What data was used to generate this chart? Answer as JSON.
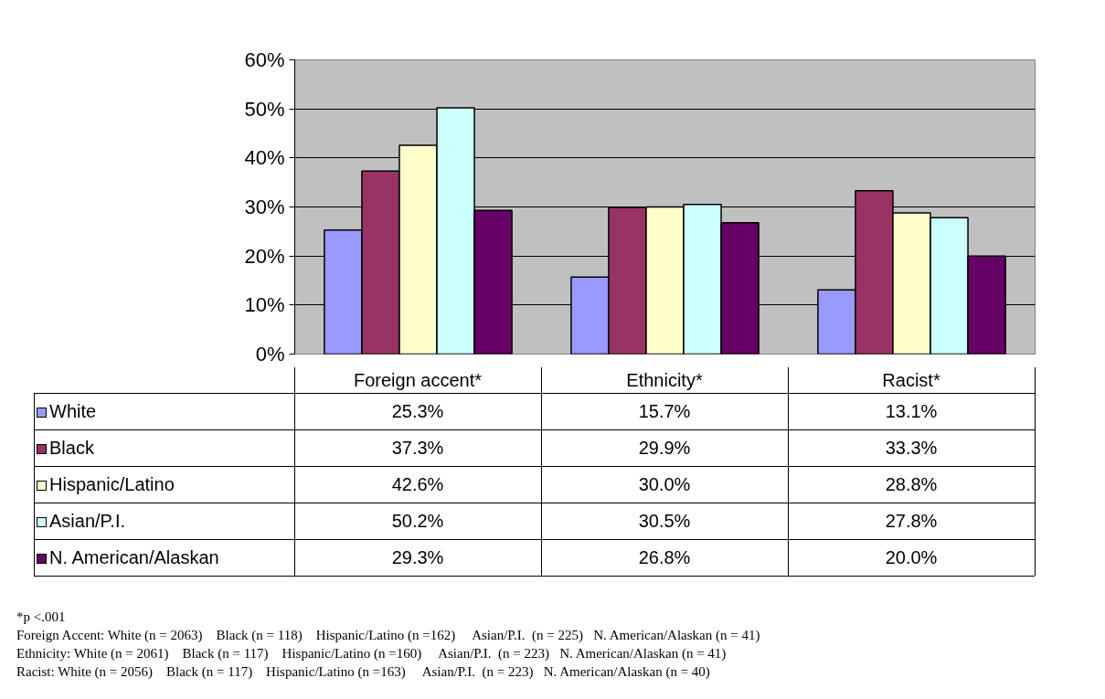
{
  "chart_data": {
    "type": "bar",
    "categories": [
      "Foreign accent*",
      "Ethnicity*",
      "Racist*"
    ],
    "series": [
      {
        "name": "White",
        "color": "#9999ff",
        "values": [
          25.3,
          15.7,
          13.1
        ],
        "value_labels": [
          "25.3%",
          "15.7%",
          "13.1%"
        ]
      },
      {
        "name": "Black",
        "color": "#993366",
        "values": [
          37.3,
          29.9,
          33.3
        ],
        "value_labels": [
          "37.3%",
          "29.9%",
          "33.3%"
        ]
      },
      {
        "name": "Hispanic/Latino",
        "color": "#ffffcc",
        "values": [
          42.6,
          30.0,
          28.8
        ],
        "value_labels": [
          "42.6%",
          "30.0%",
          "28.8%"
        ]
      },
      {
        "name": "Asian/P.I.",
        "color": "#ccffff",
        "values": [
          50.2,
          30.5,
          27.8
        ],
        "value_labels": [
          "50.2%",
          "30.5%",
          "27.8%"
        ]
      },
      {
        "name": "N. American/Alaskan",
        "color": "#660066",
        "values": [
          29.3,
          26.8,
          20.0
        ],
        "value_labels": [
          "29.3%",
          "26.8%",
          "20.0%"
        ]
      }
    ],
    "ylim": [
      0,
      60
    ],
    "yticks": [
      {
        "value": 0,
        "label": "0%"
      },
      {
        "value": 10,
        "label": "10%"
      },
      {
        "value": 20,
        "label": "20%"
      },
      {
        "value": 30,
        "label": "30%"
      },
      {
        "value": 40,
        "label": "40%"
      },
      {
        "value": 50,
        "label": "50%"
      },
      {
        "value": 60,
        "label": "60%"
      }
    ],
    "grid": "y",
    "legend": "bottom",
    "annotations": [
      "*p <.001",
      "Foreign Accent: White (n = 2063)    Black (n = 118)    Hispanic/Latino (n =162)     Asian/P.I.  (n = 225)   N. American/Alaskan (n = 41)",
      "Ethnicity: White (n = 2061)    Black (n = 117)    Hispanic/Latino (n =160)     Asian/P.I.  (n = 223)   N. American/Alaskan (n = 41)",
      "Racist: White (n = 2056)    Black (n = 117)    Hispanic/Latino (n =163)     Asian/P.I.  (n = 223)   N. American/Alaskan (n = 40)"
    ]
  }
}
